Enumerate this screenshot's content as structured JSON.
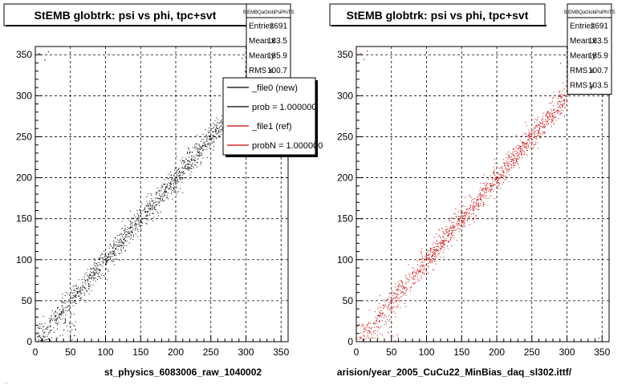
{
  "footer_fragment": "...",
  "chart_data": [
    {
      "type": "scatter",
      "title": "StEMB globtrk: psi vs phi, tpc+svt",
      "xlabel": "st_physics_6083006_raw_1040002",
      "ylabel": "",
      "xlim": [
        0,
        360
      ],
      "ylim": [
        0,
        360
      ],
      "xticks": [
        0,
        50,
        100,
        150,
        200,
        250,
        300,
        350
      ],
      "yticks": [
        0,
        50,
        100,
        150,
        200,
        250,
        300,
        350
      ],
      "grid": true,
      "marker_color": "#000000",
      "stats": {
        "name": "StEMBQaGlobPsiPhiTS",
        "rows": [
          {
            "label": "Entries",
            "value": "2691"
          },
          {
            "label": "Mean x",
            "value": "183.5"
          },
          {
            "label": "Mean y",
            "value": "185.9"
          },
          {
            "label": "RMS x",
            "value": "100.7"
          }
        ]
      },
      "legend": {
        "placement": "top-right",
        "entries": [
          {
            "label": "_file0 (new)",
            "color": "#000000"
          },
          {
            "label": "prob = 1.000000",
            "color": "#000000"
          },
          {
            "label": "_file1 (ref)",
            "color": "#cc0000"
          },
          {
            "label": "probN = 1.000000",
            "color": "#cc0000"
          }
        ]
      },
      "series": [
        {
          "correlation": "y approximately equals x, spread about +/-12 around the diagonal from 0 to 300",
          "extra_points": [
            [
              5,
              352
            ],
            [
              13,
              344
            ],
            [
              18,
              354
            ],
            [
              294,
              346
            ],
            [
              298,
              330
            ],
            [
              302,
              352
            ],
            [
              296,
              318
            ],
            [
              30,
              5
            ],
            [
              40,
              15
            ],
            [
              55,
              8
            ],
            [
              8,
              22
            ],
            [
              18,
              4
            ]
          ]
        }
      ]
    },
    {
      "type": "scatter",
      "title": "StEMB globtrk: psi vs phi, tpc+svt",
      "xlabel": "arision/year_2005_CuCu22_MinBias_daq_sl302.ittf/",
      "ylabel": "",
      "xlim": [
        0,
        360
      ],
      "ylim": [
        0,
        360
      ],
      "xticks": [
        0,
        50,
        100,
        150,
        200,
        250,
        300,
        350
      ],
      "yticks": [
        0,
        50,
        100,
        150,
        200,
        250,
        300,
        350
      ],
      "grid": true,
      "marker_color": "#cc0000",
      "stats": {
        "name": "StEMBQaGlobPsiPhiTS",
        "rows": [
          {
            "label": "Entries",
            "value": "2691"
          },
          {
            "label": "Mean x",
            "value": "183.5"
          },
          {
            "label": "Mean y",
            "value": "185.9"
          },
          {
            "label": "RMS x",
            "value": "100.7"
          },
          {
            "label": "RMS y",
            "value": "103.5"
          }
        ]
      },
      "series": [
        {
          "correlation": "y approximately equals x, spread about +/-12 around the diagonal from 0 to 300",
          "extra_points": [
            [
              5,
              352
            ],
            [
              10,
              345
            ],
            [
              15,
              355
            ],
            [
              290,
              340
            ],
            [
              300,
              320
            ],
            [
              296,
              350
            ],
            [
              350,
              10
            ],
            [
              345,
              5
            ],
            [
              30,
              5
            ],
            [
              45,
              12
            ],
            [
              8,
              20
            ]
          ]
        }
      ]
    }
  ]
}
